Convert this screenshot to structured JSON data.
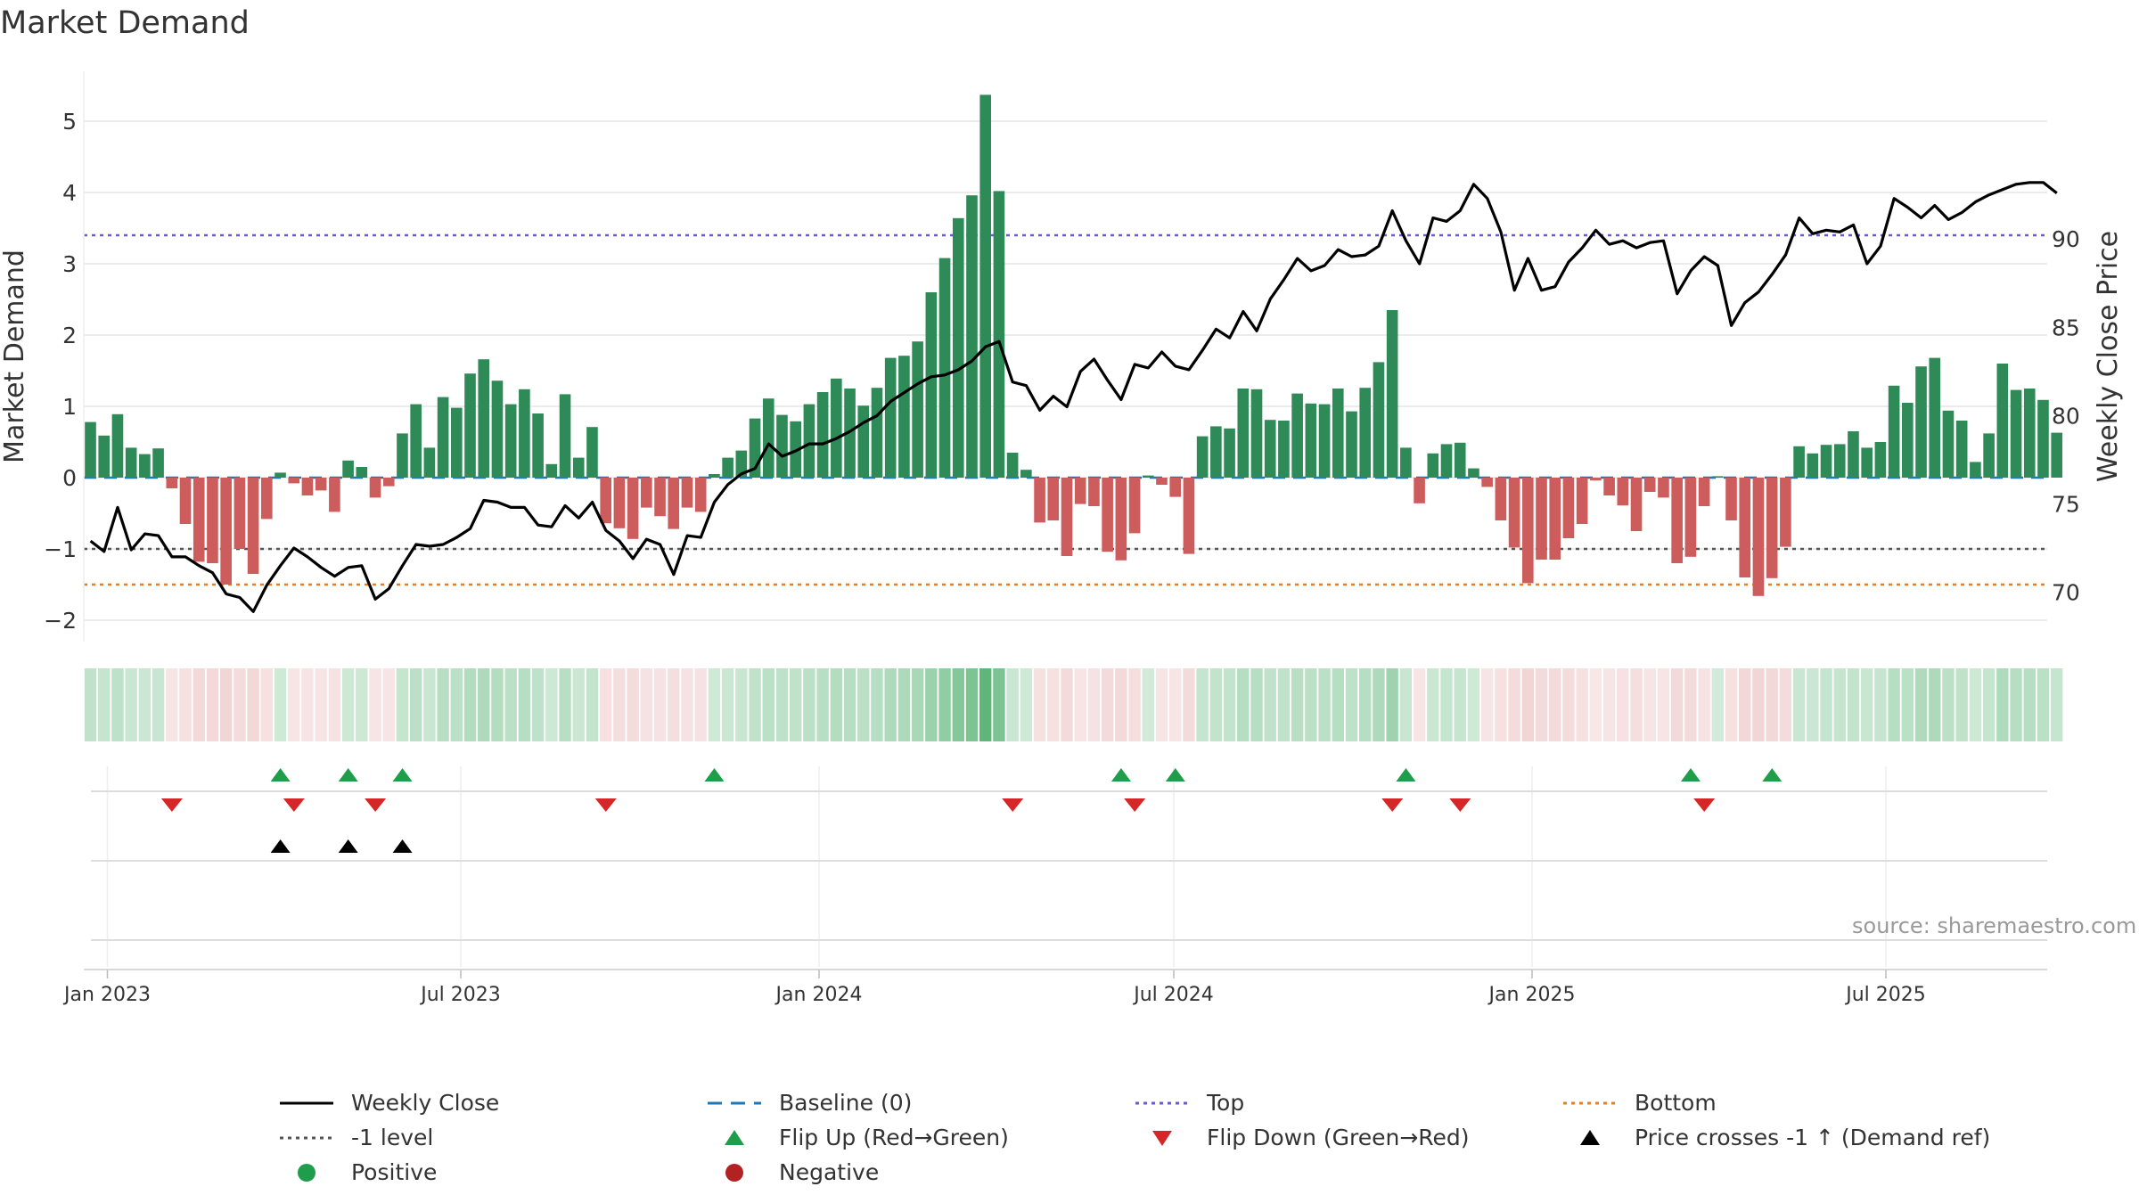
{
  "title": "Market Demand",
  "source": "source: sharemaestro.com",
  "colors": {
    "positive": "#2e8b57",
    "negative": "#cd5c5c",
    "price": "#000000",
    "baseline": "#1f77b4",
    "top": "#6a5acd",
    "bottom": "#e67e22",
    "minus_one": "#555555",
    "flip_up": "#1e9e4a",
    "flip_down": "#d62728",
    "cross": "#000000",
    "grid": "#e6e6e6"
  },
  "chart_data": {
    "type": "bar",
    "title": "Market Demand",
    "ylabel_left": "Market Demand",
    "ylabel_right": "Weekly Close Price",
    "ylim_left": [
      -2.3,
      5.7
    ],
    "ylim_right": [
      67.2,
      99.5
    ],
    "left_ticks": [
      "−2",
      "−1",
      "0",
      "1",
      "2",
      "3",
      "4",
      "5"
    ],
    "left_tick_values": [
      -2,
      -1,
      0,
      1,
      2,
      3,
      4,
      5
    ],
    "right_ticks": [
      "70",
      "75",
      "80",
      "85",
      "90"
    ],
    "right_tick_values": [
      70,
      75,
      80,
      85,
      90
    ],
    "x_tick_labels": [
      "Jan 2023",
      "Jul 2023",
      "Jan 2024",
      "Jul 2024",
      "Jan 2025",
      "Jul 2025"
    ],
    "x_tick_weeks": [
      0,
      26,
      52,
      78,
      104,
      130
    ],
    "first_week_offset": -1.6,
    "levels": {
      "top": 3.4,
      "bottom": -1.5,
      "minus_one": -1.0,
      "baseline": 0
    },
    "demand": [
      0.78,
      0.59,
      0.89,
      0.42,
      0.33,
      0.41,
      -0.15,
      -0.65,
      -1.18,
      -1.2,
      -1.5,
      -1.0,
      -1.35,
      -0.58,
      0.07,
      -0.08,
      -0.25,
      -0.18,
      -0.48,
      0.24,
      0.15,
      -0.28,
      -0.12,
      0.62,
      1.03,
      0.42,
      1.13,
      0.98,
      1.46,
      1.66,
      1.36,
      1.03,
      1.24,
      0.9,
      0.19,
      1.17,
      0.28,
      0.71,
      -0.64,
      -0.71,
      -0.86,
      -0.42,
      -0.54,
      -0.72,
      -0.42,
      -0.48,
      0.05,
      0.28,
      0.38,
      0.83,
      1.11,
      0.88,
      0.79,
      1.03,
      1.2,
      1.39,
      1.25,
      1.01,
      1.26,
      1.68,
      1.71,
      1.91,
      2.6,
      3.08,
      3.64,
      3.96,
      5.37,
      4.02,
      0.35,
      0.11,
      -0.63,
      -0.6,
      -1.1,
      -0.37,
      -0.4,
      -1.04,
      -1.16,
      -0.78,
      0.03,
      -0.1,
      -0.27,
      -1.07,
      0.58,
      0.72,
      0.69,
      1.25,
      1.24,
      0.81,
      0.8,
      1.18,
      1.04,
      1.03,
      1.25,
      0.93,
      1.26,
      1.62,
      2.35,
      0.42,
      -0.36,
      0.34,
      0.47,
      0.49,
      0.13,
      -0.13,
      -0.6,
      -0.98,
      -1.48,
      -1.15,
      -1.15,
      -0.85,
      -0.65,
      -0.04,
      -0.25,
      -0.39,
      -0.75,
      -0.2,
      -0.28,
      -1.2,
      -1.11,
      -0.4,
      0.02,
      -0.6,
      -1.4,
      -1.66,
      -1.41,
      -0.97,
      0.44,
      0.34,
      0.46,
      0.47,
      0.65,
      0.42,
      0.5,
      1.29,
      1.05,
      1.56,
      1.68,
      0.94,
      0.8,
      0.22,
      0.62,
      1.6,
      1.23,
      1.25,
      1.09,
      0.63
    ],
    "weekly_close": [
      72.9,
      72.3,
      74.8,
      72.4,
      73.3,
      73.2,
      72.0,
      72.0,
      71.5,
      71.1,
      69.9,
      69.7,
      68.9,
      70.4,
      71.5,
      72.5,
      72.0,
      71.4,
      70.9,
      71.4,
      71.5,
      69.6,
      70.2,
      71.5,
      72.7,
      72.6,
      72.7,
      73.1,
      73.6,
      75.2,
      75.1,
      74.8,
      74.8,
      73.8,
      73.7,
      74.9,
      74.2,
      75.1,
      73.5,
      72.9,
      71.9,
      73.0,
      72.7,
      71.0,
      73.2,
      73.1,
      75.1,
      76.1,
      76.7,
      77.0,
      78.4,
      77.7,
      78.0,
      78.4,
      78.4,
      78.7,
      79.1,
      79.6,
      80.0,
      80.8,
      81.3,
      81.8,
      82.2,
      82.3,
      82.6,
      83.1,
      83.9,
      84.2,
      81.9,
      81.7,
      80.3,
      81.1,
      80.5,
      82.5,
      83.2,
      82.0,
      80.9,
      82.9,
      82.7,
      83.6,
      82.8,
      82.6,
      83.7,
      84.9,
      84.4,
      85.9,
      84.8,
      86.6,
      87.7,
      88.9,
      88.2,
      88.5,
      89.4,
      89.0,
      89.1,
      89.6,
      91.6,
      89.9,
      88.6,
      91.2,
      91.0,
      91.6,
      93.1,
      92.3,
      90.4,
      87.1,
      88.9,
      87.1,
      87.3,
      88.7,
      89.5,
      90.5,
      89.7,
      89.9,
      89.5,
      89.8,
      89.9,
      86.9,
      88.2,
      89.0,
      88.5,
      85.1,
      86.4,
      87.0,
      88.0,
      89.1,
      91.2,
      90.3,
      90.5,
      90.4,
      90.8,
      88.6,
      89.6,
      92.3,
      91.8,
      91.2,
      91.9,
      91.1,
      91.5,
      92.1,
      92.5,
      92.8,
      93.1,
      93.2,
      93.2,
      92.6
    ],
    "flip_up_weeks": [
      14,
      19,
      23,
      46,
      76,
      80,
      97,
      118,
      124
    ],
    "flip_down_weeks": [
      6,
      15,
      21,
      38,
      68,
      77,
      96,
      101,
      119
    ],
    "price_cross_weeks": [
      14,
      19,
      23
    ],
    "legend": [
      {
        "label": "Weekly Close",
        "symbol": "line"
      },
      {
        "label": "Baseline (0)",
        "symbol": "dash"
      },
      {
        "label": "Top",
        "symbol": "dot"
      },
      {
        "label": "Bottom",
        "symbol": "dot"
      },
      {
        "label": "-1 level",
        "symbol": "dot"
      },
      {
        "label": "Flip Up (Red→Green)",
        "symbol": "triangle-up"
      },
      {
        "label": "Flip Down (Green→Red)",
        "symbol": "triangle-down"
      },
      {
        "label": "Price crosses -1 ↑ (Demand ref)",
        "symbol": "triangle-up"
      },
      {
        "label": "Positive",
        "symbol": "circle"
      },
      {
        "label": "Negative",
        "symbol": "circle"
      }
    ]
  }
}
